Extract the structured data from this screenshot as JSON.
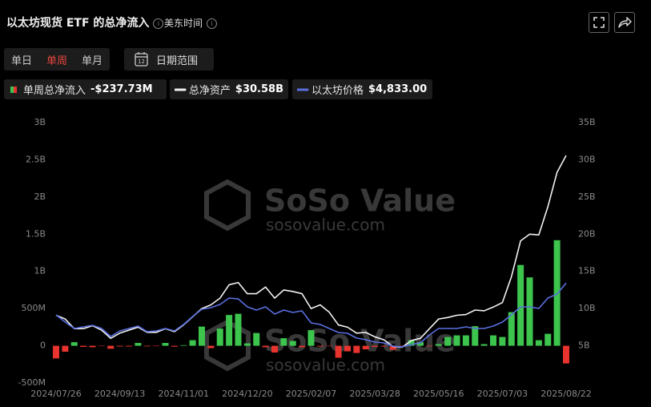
{
  "header": {
    "title": "以太坊现货 ETF 的总净流入",
    "timezone": "美东时间"
  },
  "controls": {
    "tabs": [
      "单日",
      "单周",
      "单月"
    ],
    "active_tab": 1,
    "date_range": "日期范围",
    "calendar_day": "12"
  },
  "watermark": {
    "brand": "SoSo Value",
    "url": "sosovalue.com"
  },
  "chart_data": {
    "type": "combo",
    "categories": [
      "2024/07/26",
      null,
      null,
      null,
      null,
      null,
      null,
      "2024/09/13",
      null,
      null,
      null,
      null,
      null,
      null,
      "2024/11/01",
      null,
      null,
      null,
      null,
      null,
      null,
      "2024/12/20",
      null,
      null,
      null,
      null,
      null,
      null,
      "2025/02/07",
      null,
      null,
      null,
      null,
      null,
      null,
      "2025/03/28",
      null,
      null,
      null,
      null,
      null,
      null,
      "2025/05/16",
      null,
      null,
      null,
      null,
      null,
      null,
      "2025/07/03",
      null,
      null,
      null,
      null,
      null,
      null,
      "2025/08/22"
    ],
    "ylim": [
      -500,
      3000
    ],
    "yticks": [
      {
        "value": -500,
        "label": "-500M"
      },
      0,
      {
        "value": 500,
        "label": "500M"
      },
      {
        "value": 1000,
        "label": "1B"
      },
      {
        "value": 1500,
        "label": "1.5B"
      },
      {
        "value": 2000,
        "label": "2B"
      },
      {
        "value": 2500,
        "label": "2.5B"
      },
      {
        "value": 3000,
        "label": "3B"
      }
    ],
    "y2lim": [
      0,
      35
    ],
    "y2ticks": [
      {
        "value": 5,
        "label": "5B"
      },
      {
        "value": 10,
        "label": "10B"
      },
      {
        "value": 15,
        "label": "15B"
      },
      {
        "value": 20,
        "label": "20B"
      },
      {
        "value": 25,
        "label": "25B"
      },
      {
        "value": 30,
        "label": "30B"
      },
      {
        "value": 35,
        "label": "35B"
      }
    ],
    "y3lim": [
      -250,
      13000
    ],
    "grid": false,
    "series": [
      {
        "name": "单周总净流入",
        "legend_value": "-$237.73M",
        "type": "bar",
        "color": "#3cc44d",
        "negative_color": "#e8332f",
        "values": [
          -170,
          -80,
          48,
          -15,
          -20,
          -5,
          -40,
          -10,
          -10,
          38,
          -8,
          -5,
          38,
          -12,
          8,
          75,
          258,
          -32,
          231,
          414,
          430,
          32,
          172,
          -20,
          -91,
          102,
          65,
          -20,
          210,
          -10,
          -5,
          -161,
          -75,
          -97,
          -48,
          -15,
          -10,
          -54,
          -5,
          75,
          48,
          -8,
          22,
          118,
          140,
          140,
          263,
          22,
          140,
          118,
          452,
          1086,
          919,
          75,
          161,
          1419,
          -237.73
        ]
      },
      {
        "name": "总净资产",
        "legend_value": "$30.58B",
        "type": "line",
        "axis": "y2",
        "color": "#f2f2f2",
        "values": [
          9.1,
          8.6,
          7.3,
          7.3,
          7.7,
          7.1,
          6.0,
          6.7,
          7.1,
          7.5,
          6.8,
          6.8,
          7.3,
          6.9,
          7.8,
          8.9,
          10.0,
          10.5,
          11.4,
          13.2,
          13.5,
          12.0,
          12.0,
          12.9,
          11.4,
          12.5,
          12.3,
          12.0,
          10.0,
          10.5,
          9.5,
          7.8,
          7.5,
          6.7,
          6.8,
          6.2,
          5.8,
          4.9,
          4.8,
          5.7,
          6.0,
          7.3,
          8.6,
          8.8,
          9.1,
          9.2,
          9.8,
          9.7,
          10.2,
          10.8,
          14.3,
          19.1,
          20.0,
          19.9,
          23.7,
          28.3,
          30.58
        ]
      },
      {
        "name": "以太坊价格",
        "legend_value": "$4,833.00",
        "type": "line",
        "axis": "y3",
        "color": "#5a6fe0",
        "values": [
          3215,
          2848,
          2522,
          2604,
          2685,
          2522,
          2114,
          2400,
          2522,
          2644,
          2359,
          2400,
          2522,
          2400,
          2726,
          3133,
          3500,
          3582,
          3745,
          4071,
          4030,
          3623,
          3460,
          3623,
          3256,
          3460,
          3338,
          3419,
          2807,
          2726,
          2522,
          2318,
          2278,
          2033,
          1951,
          1829,
          1788,
          1625,
          1584,
          1707,
          1788,
          2196,
          2522,
          2522,
          2522,
          2604,
          2522,
          2522,
          2644,
          2848,
          3215,
          3623,
          3623,
          3541,
          4071,
          4275,
          4833
        ]
      }
    ]
  }
}
